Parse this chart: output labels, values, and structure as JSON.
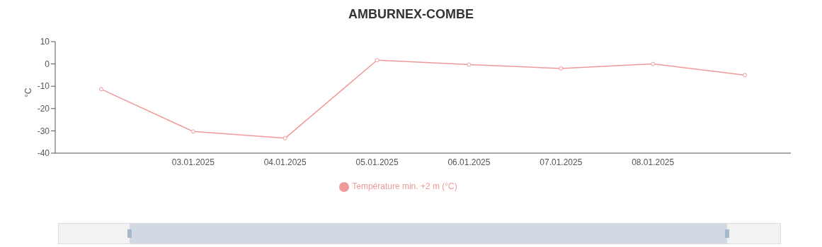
{
  "chart_data": {
    "type": "line",
    "title": "AMBURNEX-COMBE",
    "ylabel": "°C",
    "categories": [
      null,
      "03.01.2025",
      "04.01.2025",
      "05.01.2025",
      "06.01.2025",
      "07.01.2025",
      "08.01.2025",
      null
    ],
    "series": [
      {
        "name": "Température min. +2 m (°C)",
        "color": "#ef9a9a",
        "values": [
          -11.3,
          -30.3,
          -33.3,
          1.7,
          -0.3,
          -2,
          0,
          -5
        ]
      }
    ],
    "ylim": [
      -40,
      10
    ],
    "yticks": [
      -40,
      -30,
      -20,
      -10,
      0,
      10
    ],
    "marker": "circle",
    "legend": "bottom",
    "grid": false
  }
}
